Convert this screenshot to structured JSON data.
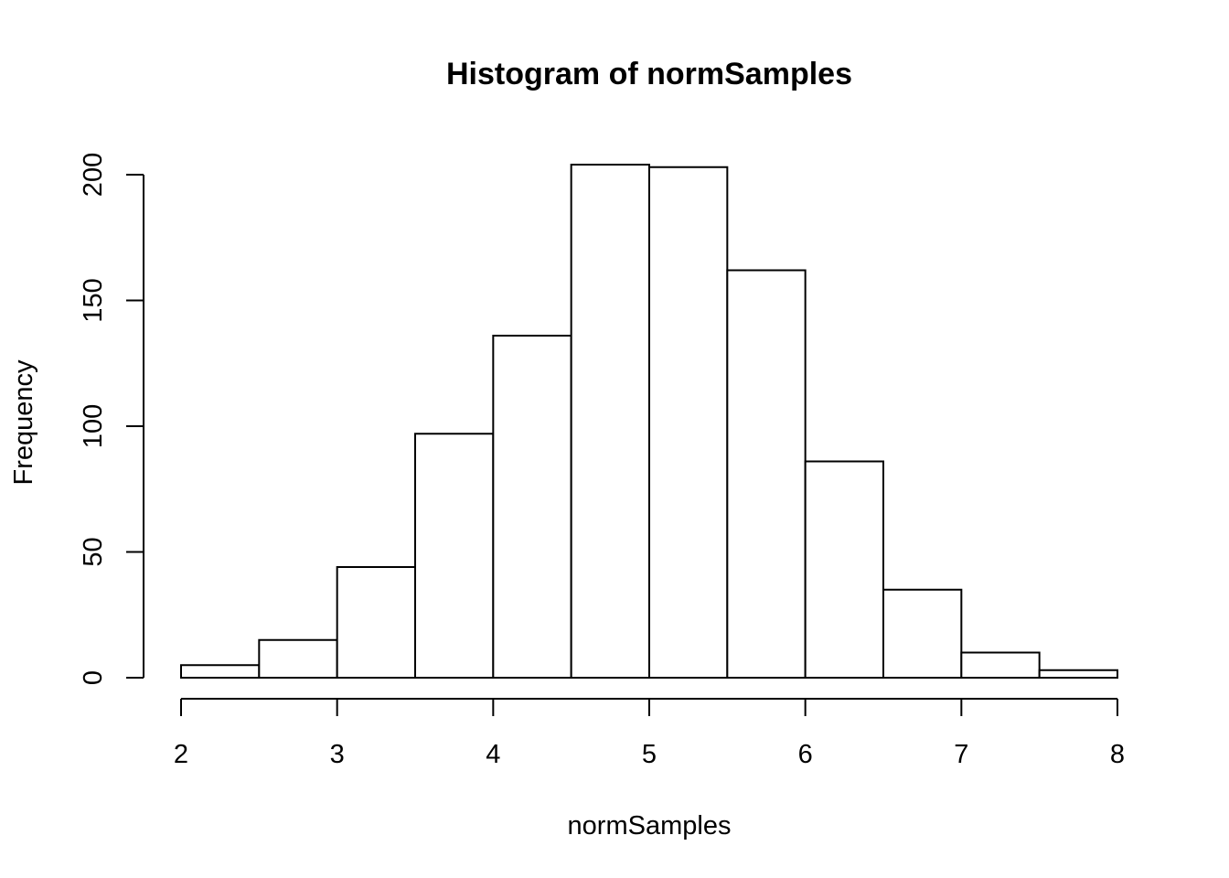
{
  "chart_data": {
    "type": "bar",
    "title": "Histogram of normSamples",
    "xlabel": "normSamples",
    "ylabel": "Frequency",
    "bins": [
      {
        "start": 2.0,
        "end": 2.5,
        "count": 5
      },
      {
        "start": 2.5,
        "end": 3.0,
        "count": 15
      },
      {
        "start": 3.0,
        "end": 3.5,
        "count": 44
      },
      {
        "start": 3.5,
        "end": 4.0,
        "count": 97
      },
      {
        "start": 4.0,
        "end": 4.5,
        "count": 136
      },
      {
        "start": 4.5,
        "end": 5.0,
        "count": 204
      },
      {
        "start": 5.0,
        "end": 5.5,
        "count": 203
      },
      {
        "start": 5.5,
        "end": 6.0,
        "count": 162
      },
      {
        "start": 6.0,
        "end": 6.5,
        "count": 86
      },
      {
        "start": 6.5,
        "end": 7.0,
        "count": 35
      },
      {
        "start": 7.0,
        "end": 7.5,
        "count": 10
      },
      {
        "start": 7.5,
        "end": 8.0,
        "count": 3
      }
    ],
    "xlim": [
      2,
      8
    ],
    "ylim": [
      0,
      200
    ],
    "x_ticks": [
      2,
      3,
      4,
      5,
      6,
      7,
      8
    ],
    "x_tick_labels": [
      "2",
      "3",
      "4",
      "5",
      "6",
      "7",
      "8"
    ],
    "y_ticks": [
      0,
      50,
      100,
      150,
      200
    ],
    "y_tick_labels": [
      "0",
      "50",
      "100",
      "150",
      "200"
    ],
    "grid": false,
    "bar_fill": "#ffffff",
    "bar_stroke": "#000000"
  }
}
